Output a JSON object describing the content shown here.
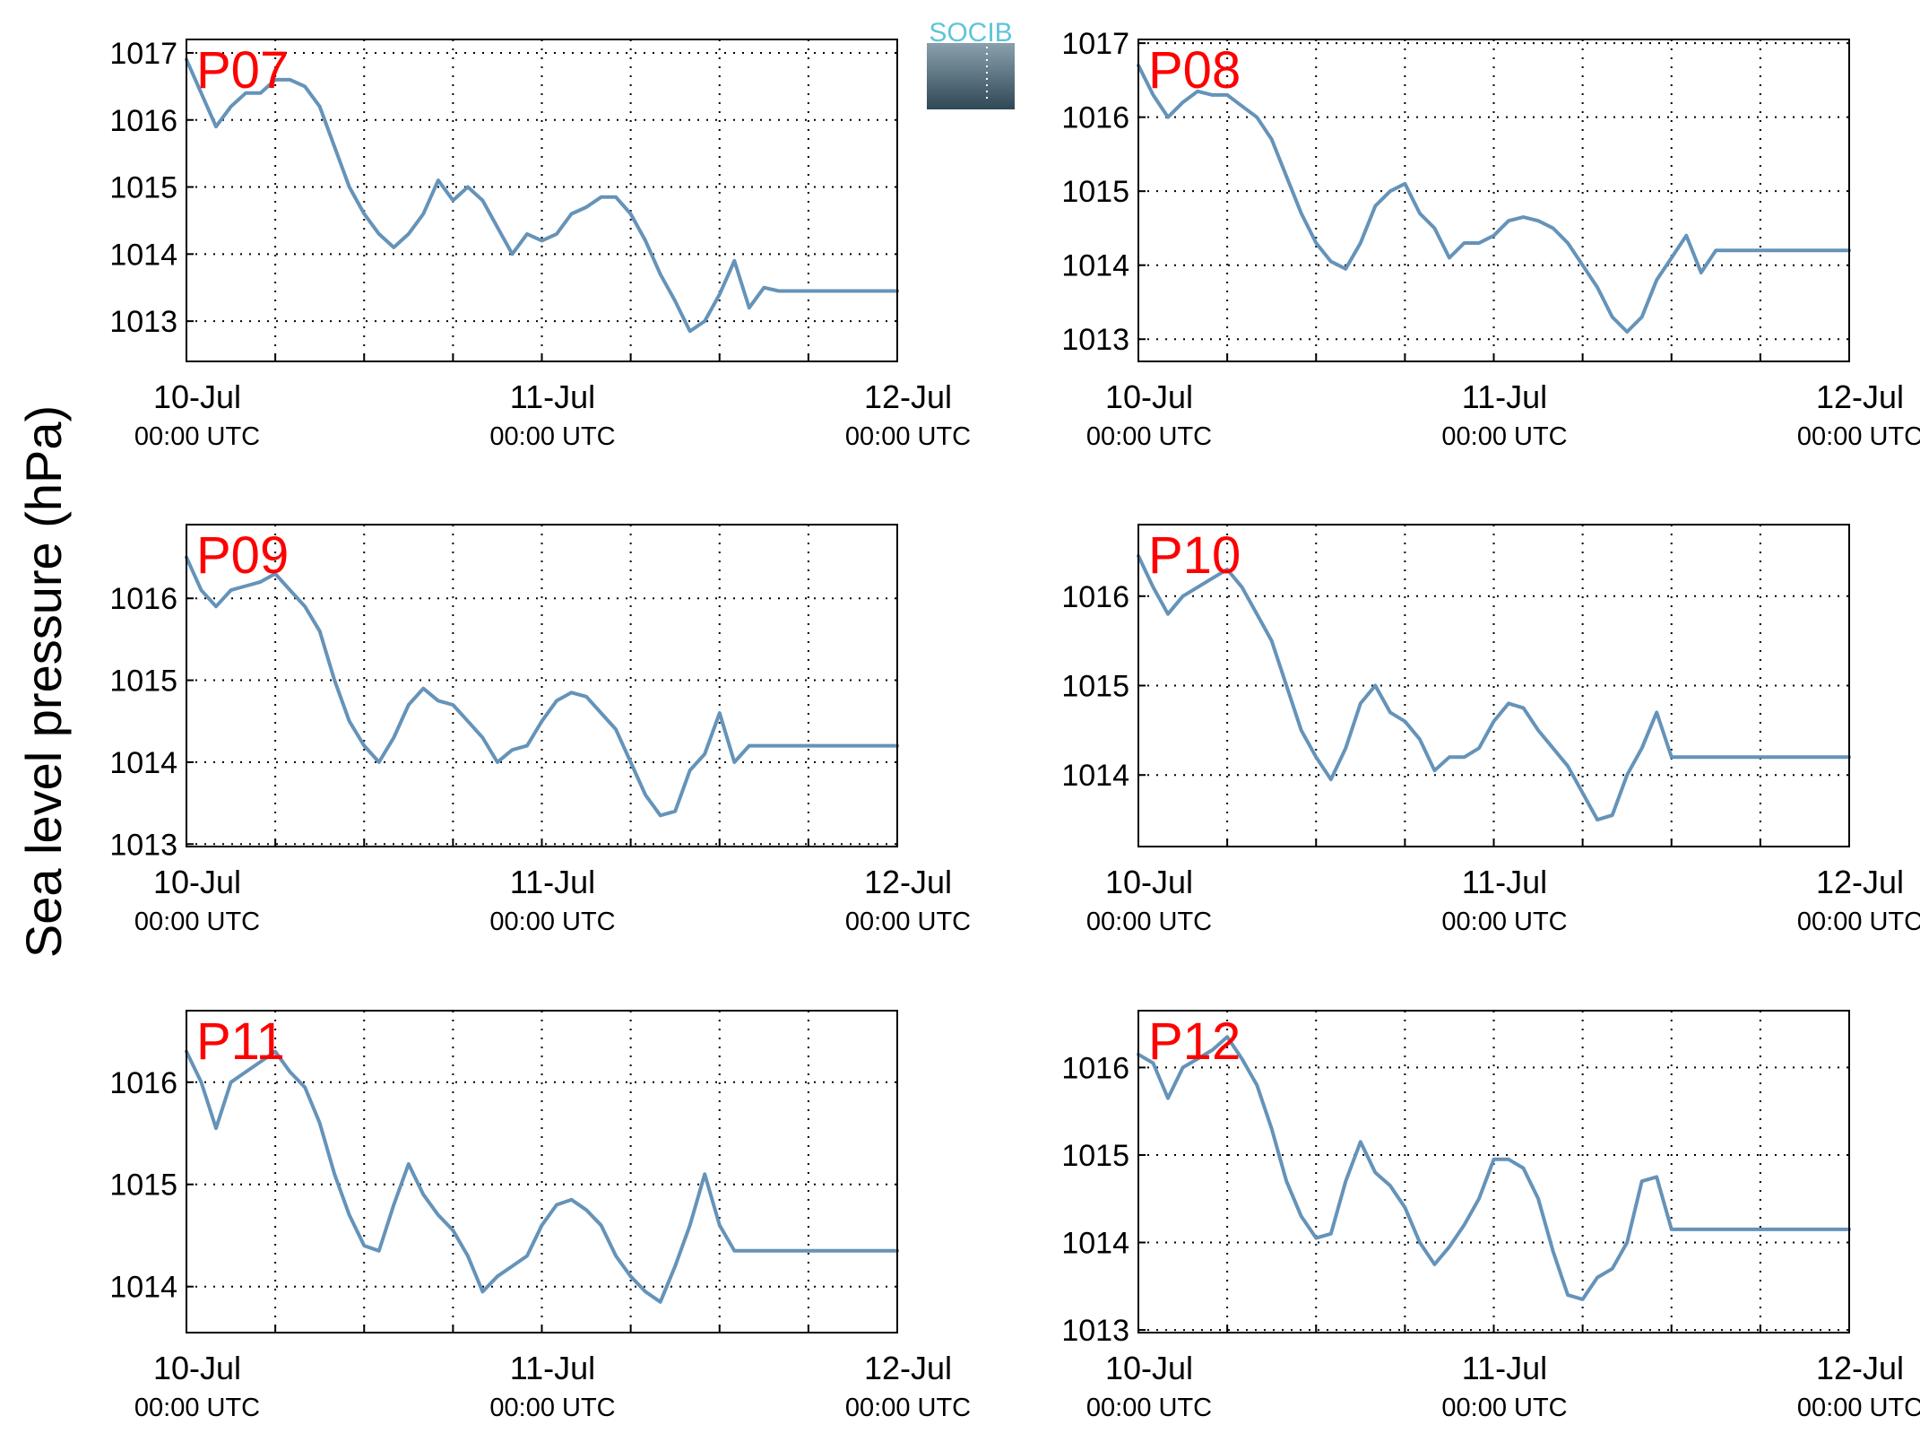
{
  "figure": {
    "ylabel": "Sea level pressure (hPa)",
    "x_ticks": [
      {
        "date": "10-Jul",
        "time": "00:00 UTC"
      },
      {
        "date": "11-Jul",
        "time": "00:00 UTC"
      },
      {
        "date": "12-Jul",
        "time": "00:00 UTC"
      }
    ],
    "logo": {
      "text": "SOCIB"
    },
    "colors": {
      "series": "#6593b9",
      "station_label": "#ff0000",
      "axis": "#000000",
      "logo_text": "#5ec4d9",
      "logo_top": "#8aa0ad",
      "logo_bottom": "#2f4856"
    }
  },
  "chart_data": [
    {
      "type": "line",
      "station": "P07",
      "x_unit": "hours since 10-Jul 00:00 UTC",
      "xlim": [
        0,
        48
      ],
      "ylim": [
        1012.4,
        1017.2
      ],
      "yticks": [
        1013,
        1014,
        1015,
        1016,
        1017
      ],
      "grid": true,
      "x": [
        0,
        1,
        2,
        3,
        4,
        5,
        6,
        7,
        8,
        9,
        10,
        11,
        12,
        13,
        14,
        15,
        16,
        17,
        18,
        19,
        20,
        21,
        22,
        23,
        24,
        25,
        26,
        27,
        28,
        29,
        30,
        31,
        32,
        33,
        34,
        35,
        36,
        37,
        38,
        39,
        40,
        41,
        42,
        43,
        44,
        45,
        46,
        47,
        48
      ],
      "y": [
        1016.9,
        1016.4,
        1015.9,
        1016.2,
        1016.4,
        1016.4,
        1016.6,
        1016.6,
        1016.5,
        1016.2,
        1015.6,
        1015.0,
        1014.6,
        1014.3,
        1014.1,
        1014.3,
        1014.6,
        1015.1,
        1014.8,
        1015.0,
        1014.8,
        1014.4,
        1014.0,
        1014.3,
        1014.2,
        1014.3,
        1014.6,
        1014.7,
        1014.85,
        1014.85,
        1014.6,
        1014.2,
        1013.7,
        1013.3,
        1012.85,
        1013.0,
        1013.4,
        1013.9,
        1013.2,
        1013.5,
        1013.45,
        1013.45,
        1013.45,
        1013.45,
        1013.45,
        1013.45,
        1013.45,
        1013.45,
        1013.45
      ]
    },
    {
      "type": "line",
      "station": "P08",
      "x_unit": "hours since 10-Jul 00:00 UTC",
      "xlim": [
        0,
        48
      ],
      "ylim": [
        1012.7,
        1017.05
      ],
      "yticks": [
        1013,
        1014,
        1015,
        1016,
        1017
      ],
      "grid": true,
      "x": [
        0,
        1,
        2,
        3,
        4,
        5,
        6,
        7,
        8,
        9,
        10,
        11,
        12,
        13,
        14,
        15,
        16,
        17,
        18,
        19,
        20,
        21,
        22,
        23,
        24,
        25,
        26,
        27,
        28,
        29,
        30,
        31,
        32,
        33,
        34,
        35,
        36,
        37,
        38,
        39,
        40,
        41,
        42,
        43,
        44,
        45,
        46,
        47,
        48
      ],
      "y": [
        1016.7,
        1016.3,
        1016.0,
        1016.2,
        1016.35,
        1016.3,
        1016.3,
        1016.15,
        1016.0,
        1015.7,
        1015.2,
        1014.7,
        1014.3,
        1014.05,
        1013.95,
        1014.3,
        1014.8,
        1015.0,
        1015.1,
        1014.7,
        1014.5,
        1014.1,
        1014.3,
        1014.3,
        1014.4,
        1014.6,
        1014.65,
        1014.6,
        1014.5,
        1014.3,
        1014.0,
        1013.7,
        1013.3,
        1013.1,
        1013.3,
        1013.8,
        1014.1,
        1014.4,
        1013.9,
        1014.2,
        1014.2,
        1014.2,
        1014.2,
        1014.2,
        1014.2,
        1014.2,
        1014.2,
        1014.2,
        1014.2
      ]
    },
    {
      "type": "line",
      "station": "P09",
      "x_unit": "hours since 10-Jul 00:00 UTC",
      "xlim": [
        0,
        48
      ],
      "ylim": [
        1012.97,
        1016.9
      ],
      "yticks": [
        1013,
        1014,
        1015,
        1016
      ],
      "grid": true,
      "x": [
        0,
        1,
        2,
        3,
        4,
        5,
        6,
        7,
        8,
        9,
        10,
        11,
        12,
        13,
        14,
        15,
        16,
        17,
        18,
        19,
        20,
        21,
        22,
        23,
        24,
        25,
        26,
        27,
        28,
        29,
        30,
        31,
        32,
        33,
        34,
        35,
        36,
        37,
        38,
        39,
        40,
        41,
        42,
        43,
        44,
        45,
        46,
        47,
        48
      ],
      "y": [
        1016.5,
        1016.1,
        1015.9,
        1016.1,
        1016.15,
        1016.2,
        1016.3,
        1016.1,
        1015.9,
        1015.6,
        1015.0,
        1014.5,
        1014.2,
        1014.0,
        1014.3,
        1014.7,
        1014.9,
        1014.75,
        1014.7,
        1014.5,
        1014.3,
        1014.0,
        1014.15,
        1014.2,
        1014.5,
        1014.75,
        1014.85,
        1014.8,
        1014.6,
        1014.4,
        1014.0,
        1013.6,
        1013.35,
        1013.4,
        1013.9,
        1014.1,
        1014.6,
        1014.0,
        1014.2,
        1014.2,
        1014.2,
        1014.2,
        1014.2,
        1014.2,
        1014.2,
        1014.2,
        1014.2,
        1014.2,
        1014.2
      ]
    },
    {
      "type": "line",
      "station": "P10",
      "x_unit": "hours since 10-Jul 00:00 UTC",
      "xlim": [
        0,
        48
      ],
      "ylim": [
        1013.2,
        1016.8
      ],
      "yticks": [
        1014,
        1015,
        1016
      ],
      "grid": true,
      "x": [
        0,
        1,
        2,
        3,
        4,
        5,
        6,
        7,
        8,
        9,
        10,
        11,
        12,
        13,
        14,
        15,
        16,
        17,
        18,
        19,
        20,
        21,
        22,
        23,
        24,
        25,
        26,
        27,
        28,
        29,
        30,
        31,
        32,
        33,
        34,
        35,
        36,
        37,
        38,
        39,
        40,
        41,
        42,
        43,
        44,
        45,
        46,
        47,
        48
      ],
      "y": [
        1016.45,
        1016.1,
        1015.8,
        1016.0,
        1016.1,
        1016.2,
        1016.3,
        1016.1,
        1015.8,
        1015.5,
        1015.0,
        1014.5,
        1014.2,
        1013.95,
        1014.3,
        1014.8,
        1015.0,
        1014.7,
        1014.6,
        1014.4,
        1014.05,
        1014.2,
        1014.2,
        1014.3,
        1014.6,
        1014.8,
        1014.75,
        1014.5,
        1014.3,
        1014.1,
        1013.8,
        1013.5,
        1013.55,
        1014.0,
        1014.3,
        1014.7,
        1014.2,
        1014.2,
        1014.2,
        1014.2,
        1014.2,
        1014.2,
        1014.2,
        1014.2,
        1014.2,
        1014.2,
        1014.2,
        1014.2,
        1014.2
      ]
    },
    {
      "type": "line",
      "station": "P11",
      "x_unit": "hours since 10-Jul 00:00 UTC",
      "xlim": [
        0,
        48
      ],
      "ylim": [
        1013.55,
        1016.7
      ],
      "yticks": [
        1014,
        1015,
        1016
      ],
      "grid": true,
      "x": [
        0,
        1,
        2,
        3,
        4,
        5,
        6,
        7,
        8,
        9,
        10,
        11,
        12,
        13,
        14,
        15,
        16,
        17,
        18,
        19,
        20,
        21,
        22,
        23,
        24,
        25,
        26,
        27,
        28,
        29,
        30,
        31,
        32,
        33,
        34,
        35,
        36,
        37,
        38,
        39,
        40,
        41,
        42,
        43,
        44,
        45,
        46,
        47,
        48
      ],
      "y": [
        1016.3,
        1016.0,
        1015.55,
        1016.0,
        1016.1,
        1016.2,
        1016.3,
        1016.1,
        1015.95,
        1015.6,
        1015.1,
        1014.7,
        1014.4,
        1014.35,
        1014.8,
        1015.2,
        1014.9,
        1014.7,
        1014.55,
        1014.3,
        1013.95,
        1014.1,
        1014.2,
        1014.3,
        1014.6,
        1014.8,
        1014.85,
        1014.75,
        1014.6,
        1014.3,
        1014.1,
        1013.95,
        1013.85,
        1014.2,
        1014.6,
        1015.1,
        1014.6,
        1014.35,
        1014.35,
        1014.35,
        1014.35,
        1014.35,
        1014.35,
        1014.35,
        1014.35,
        1014.35,
        1014.35,
        1014.35,
        1014.35
      ]
    },
    {
      "type": "line",
      "station": "P12",
      "x_unit": "hours since 10-Jul 00:00 UTC",
      "xlim": [
        0,
        48
      ],
      "ylim": [
        1012.97,
        1016.65
      ],
      "yticks": [
        1013,
        1014,
        1015,
        1016
      ],
      "grid": true,
      "x": [
        0,
        1,
        2,
        3,
        4,
        5,
        6,
        7,
        8,
        9,
        10,
        11,
        12,
        13,
        14,
        15,
        16,
        17,
        18,
        19,
        20,
        21,
        22,
        23,
        24,
        25,
        26,
        27,
        28,
        29,
        30,
        31,
        32,
        33,
        34,
        35,
        36,
        37,
        38,
        39,
        40,
        41,
        42,
        43,
        44,
        45,
        46,
        47,
        48
      ],
      "y": [
        1016.15,
        1016.05,
        1015.65,
        1016.0,
        1016.1,
        1016.2,
        1016.35,
        1016.1,
        1015.8,
        1015.3,
        1014.7,
        1014.3,
        1014.05,
        1014.1,
        1014.7,
        1015.15,
        1014.8,
        1014.65,
        1014.4,
        1014.0,
        1013.75,
        1013.95,
        1014.2,
        1014.5,
        1014.95,
        1014.95,
        1014.85,
        1014.5,
        1013.9,
        1013.4,
        1013.35,
        1013.6,
        1013.7,
        1014.0,
        1014.7,
        1014.75,
        1014.15,
        1014.15,
        1014.15,
        1014.15,
        1014.15,
        1014.15,
        1014.15,
        1014.15,
        1014.15,
        1014.15,
        1014.15,
        1014.15,
        1014.15
      ]
    }
  ]
}
